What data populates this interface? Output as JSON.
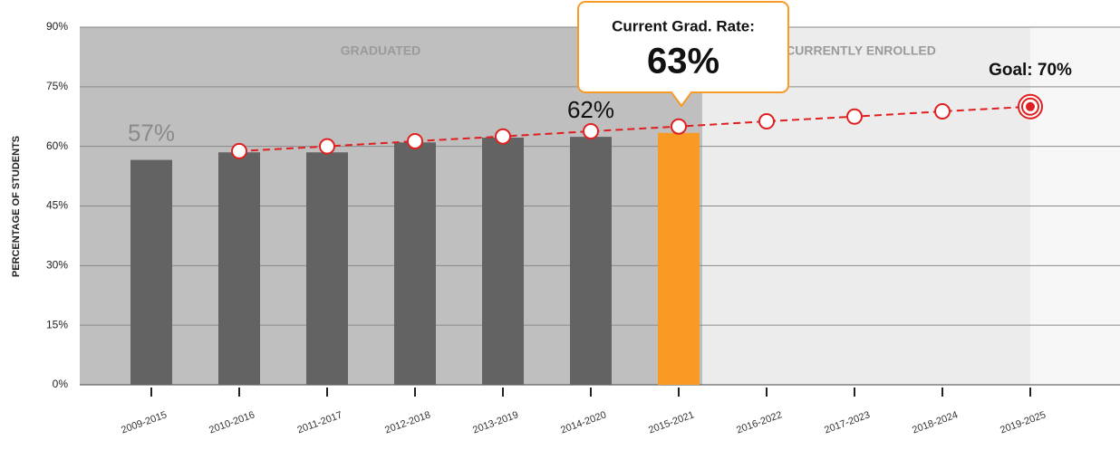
{
  "chart_data": {
    "type": "bar",
    "y_axis_label": "PERCENTAGE OF STUDENTS",
    "regions": [
      "GRADUATED",
      "CURRENTLY ENROLLED"
    ],
    "categories": [
      "2009-2015",
      "2010-2016",
      "2011-2017",
      "2012-2018",
      "2013-2019",
      "2014-2020",
      "2015-2021",
      "2016-2022",
      "2017-2023",
      "2018-2024",
      "2019-2025"
    ],
    "values": [
      56.6,
      58.5,
      58.5,
      61,
      62.2,
      62.4,
      63.4,
      null,
      null,
      null,
      null
    ],
    "value_labels": [
      "57%",
      null,
      null,
      null,
      null,
      "62%",
      "63%",
      null,
      null,
      null,
      null
    ],
    "color": "#636363",
    "highlight_color": "#f99a25",
    "highlight_index": 6,
    "callout_title": "Current Grad. Rate:",
    "goal_line": {
      "color": "#e02020",
      "values": [
        null,
        58.8,
        60.0,
        61.3,
        62.5,
        63.8,
        65.0,
        66.3,
        67.5,
        68.8,
        70
      ]
    },
    "goal_label": "Goal: 70%",
    "ylim": [
      0,
      90
    ],
    "yticks": [
      {
        "value": 0,
        "label": "0%"
      },
      {
        "value": 15,
        "label": "15%"
      },
      {
        "value": 30,
        "label": "30%"
      },
      {
        "value": 45,
        "label": "45%"
      },
      {
        "value": 60,
        "label": "60%"
      },
      {
        "value": 75,
        "label": "75%"
      },
      {
        "value": 90,
        "label": "90%"
      }
    ],
    "grid": true
  }
}
